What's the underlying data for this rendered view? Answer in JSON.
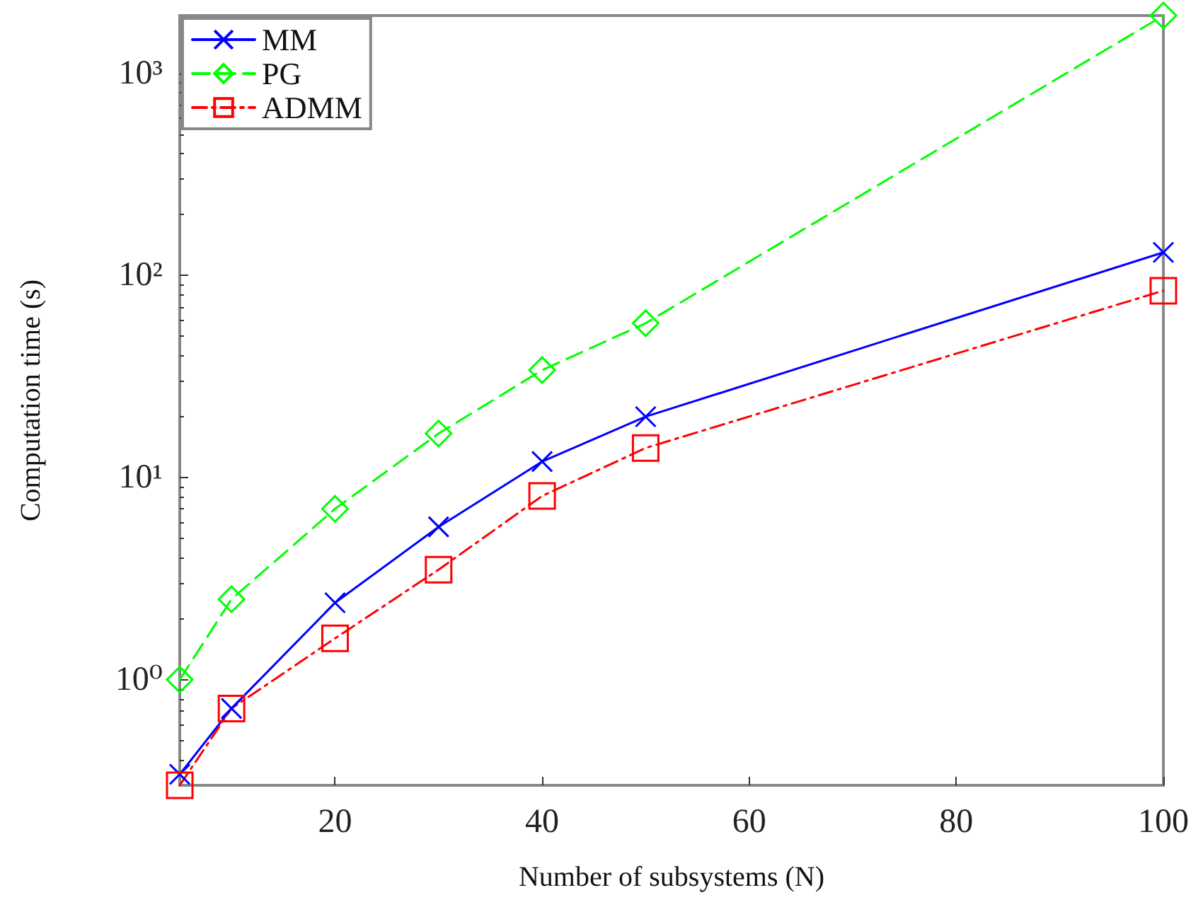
{
  "chart_data": {
    "type": "line",
    "xlabel": "Number of subsystems (N)",
    "ylabel": "Computation time (s)",
    "log": "y",
    "x": [
      5,
      10,
      20,
      30,
      40,
      50,
      100
    ],
    "xlim": [
      5,
      100
    ],
    "xticks": [
      20,
      40,
      60,
      80,
      100
    ],
    "ylim": [
      0.3,
      1930
    ],
    "yticks": [
      {
        "value": 1,
        "label": "10⁰"
      },
      {
        "value": 10,
        "label": "10¹"
      },
      {
        "value": 100,
        "label": "10²"
      },
      {
        "value": 1000,
        "label": "10³"
      }
    ],
    "grid": false,
    "legend": "top left",
    "series": [
      {
        "name": "MM",
        "color": "#0000ff",
        "marker": "cross",
        "line_style": "solid",
        "values": [
          0.34,
          0.72,
          2.4,
          5.7,
          12,
          20,
          130
        ]
      },
      {
        "name": "PG",
        "color": "#00ff00",
        "marker": "diamond",
        "line_style": "dashed",
        "values": [
          1.0,
          2.5,
          7.0,
          16.5,
          34,
          58,
          1930
        ]
      },
      {
        "name": "ADMM",
        "color": "#ff0000",
        "marker": "square",
        "line_style": "dashdot",
        "values": [
          0.3,
          0.72,
          1.6,
          3.5,
          8.1,
          14,
          84
        ]
      }
    ]
  }
}
